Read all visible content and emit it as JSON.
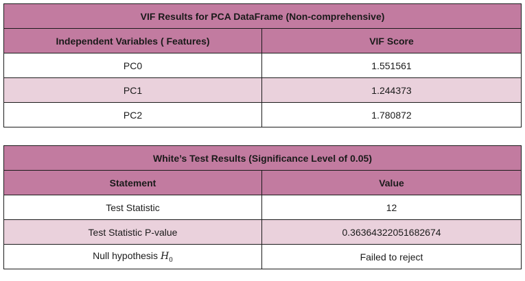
{
  "vif": {
    "title": "VIF Results for PCA DataFrame (Non-comprehensive)",
    "col1_header": "Independent Variables ( Features)",
    "col2_header": "VIF Score",
    "rows": [
      {
        "feature": "PC0",
        "score": "1.551561"
      },
      {
        "feature": "PC1",
        "score": "1.244373"
      },
      {
        "feature": "PC2",
        "score": "1.780872"
      }
    ]
  },
  "white": {
    "title": "White’s Test Results (Significance Level of 0.05)",
    "col1_header": "Statement",
    "col2_header": "Value",
    "rows": [
      {
        "statement": "Test Statistic",
        "value": "12"
      },
      {
        "statement": "Test Statistic P-value",
        "value": "0.36364322051682674"
      },
      {
        "statement": "Null hypothesis",
        "symbol": "H",
        "subscript": "0",
        "value": "Failed to reject"
      }
    ]
  },
  "colors": {
    "header_bg": "#c27ba0",
    "alt_row_bg": "#ead1dc",
    "row_bg": "#ffffff",
    "border": "#1a1a1a"
  }
}
